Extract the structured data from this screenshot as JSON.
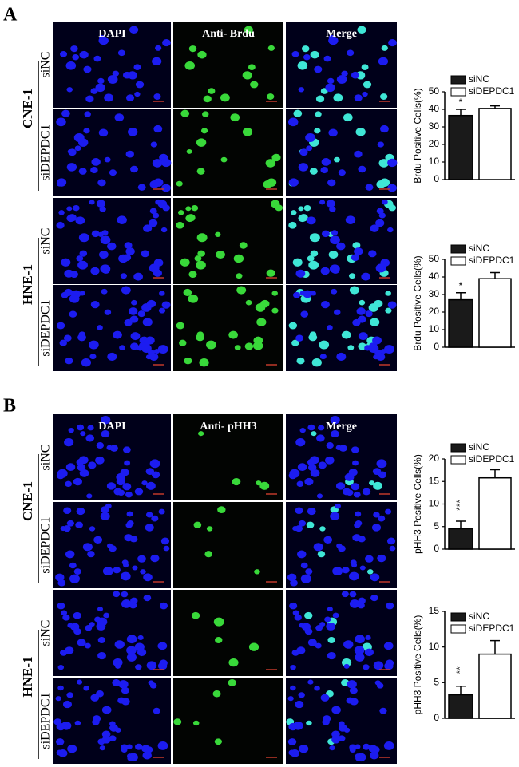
{
  "panels": [
    {
      "label": "A",
      "columns": [
        "DAPI",
        "Anti- Brdu",
        "Merge"
      ],
      "groups": [
        {
          "name": "CNE-1",
          "rows": [
            "siNC",
            "siDEPDC1"
          ]
        },
        {
          "name": "HNE-1",
          "rows": [
            "siNC",
            "siDEPDC1"
          ]
        }
      ]
    },
    {
      "label": "B",
      "columns": [
        "DAPI",
        "Anti- pHH3",
        "Merge"
      ],
      "groups": [
        {
          "name": "CNE-1",
          "rows": [
            "siNC",
            "siDEPDC1"
          ]
        },
        {
          "name": "HNE-1",
          "rows": [
            "siNC",
            "siDEPDC1"
          ]
        }
      ]
    }
  ],
  "chart_data": [
    {
      "type": "bar",
      "ylabel": "Brdu Positive Cells(%)",
      "ylim": [
        0,
        50
      ],
      "yticks": [
        0,
        10,
        20,
        30,
        40,
        50
      ],
      "annotation": "*",
      "series": [
        {
          "name": "siNC",
          "color": "#1a1a1a",
          "values": [
            36.5
          ],
          "errors": [
            3.5
          ]
        },
        {
          "name": "siDEPDC1",
          "color": "#ffffff",
          "values": [
            40.5
          ],
          "errors": [
            1.5
          ]
        }
      ]
    },
    {
      "type": "bar",
      "ylabel": "Brdu Positive Cells(%)",
      "ylim": [
        0,
        50
      ],
      "yticks": [
        0,
        10,
        20,
        30,
        40,
        50
      ],
      "annotation": "*",
      "series": [
        {
          "name": "siNC",
          "color": "#1a1a1a",
          "values": [
            27
          ],
          "errors": [
            4
          ]
        },
        {
          "name": "siDEPDC1",
          "color": "#ffffff",
          "values": [
            39
          ],
          "errors": [
            3.5
          ]
        }
      ]
    },
    {
      "type": "bar",
      "ylabel": "pHH3 Positive Cells(%)",
      "ylim": [
        0,
        20
      ],
      "yticks": [
        0,
        5,
        10,
        15,
        20
      ],
      "annotation": "***",
      "series": [
        {
          "name": "siNC",
          "color": "#1a1a1a",
          "values": [
            4.5
          ],
          "errors": [
            1.7
          ]
        },
        {
          "name": "siDEPDC1",
          "color": "#ffffff",
          "values": [
            15.8
          ],
          "errors": [
            1.8
          ]
        }
      ]
    },
    {
      "type": "bar",
      "ylabel": "pHH3 Positive Cells(%)",
      "ylim": [
        0,
        15
      ],
      "yticks": [
        0,
        5,
        10,
        15
      ],
      "annotation": "**",
      "series": [
        {
          "name": "siNC",
          "color": "#1a1a1a",
          "values": [
            3.3
          ],
          "errors": [
            1.2
          ]
        },
        {
          "name": "siDEPDC1",
          "color": "#ffffff",
          "values": [
            9
          ],
          "errors": [
            1.9
          ]
        }
      ]
    }
  ]
}
